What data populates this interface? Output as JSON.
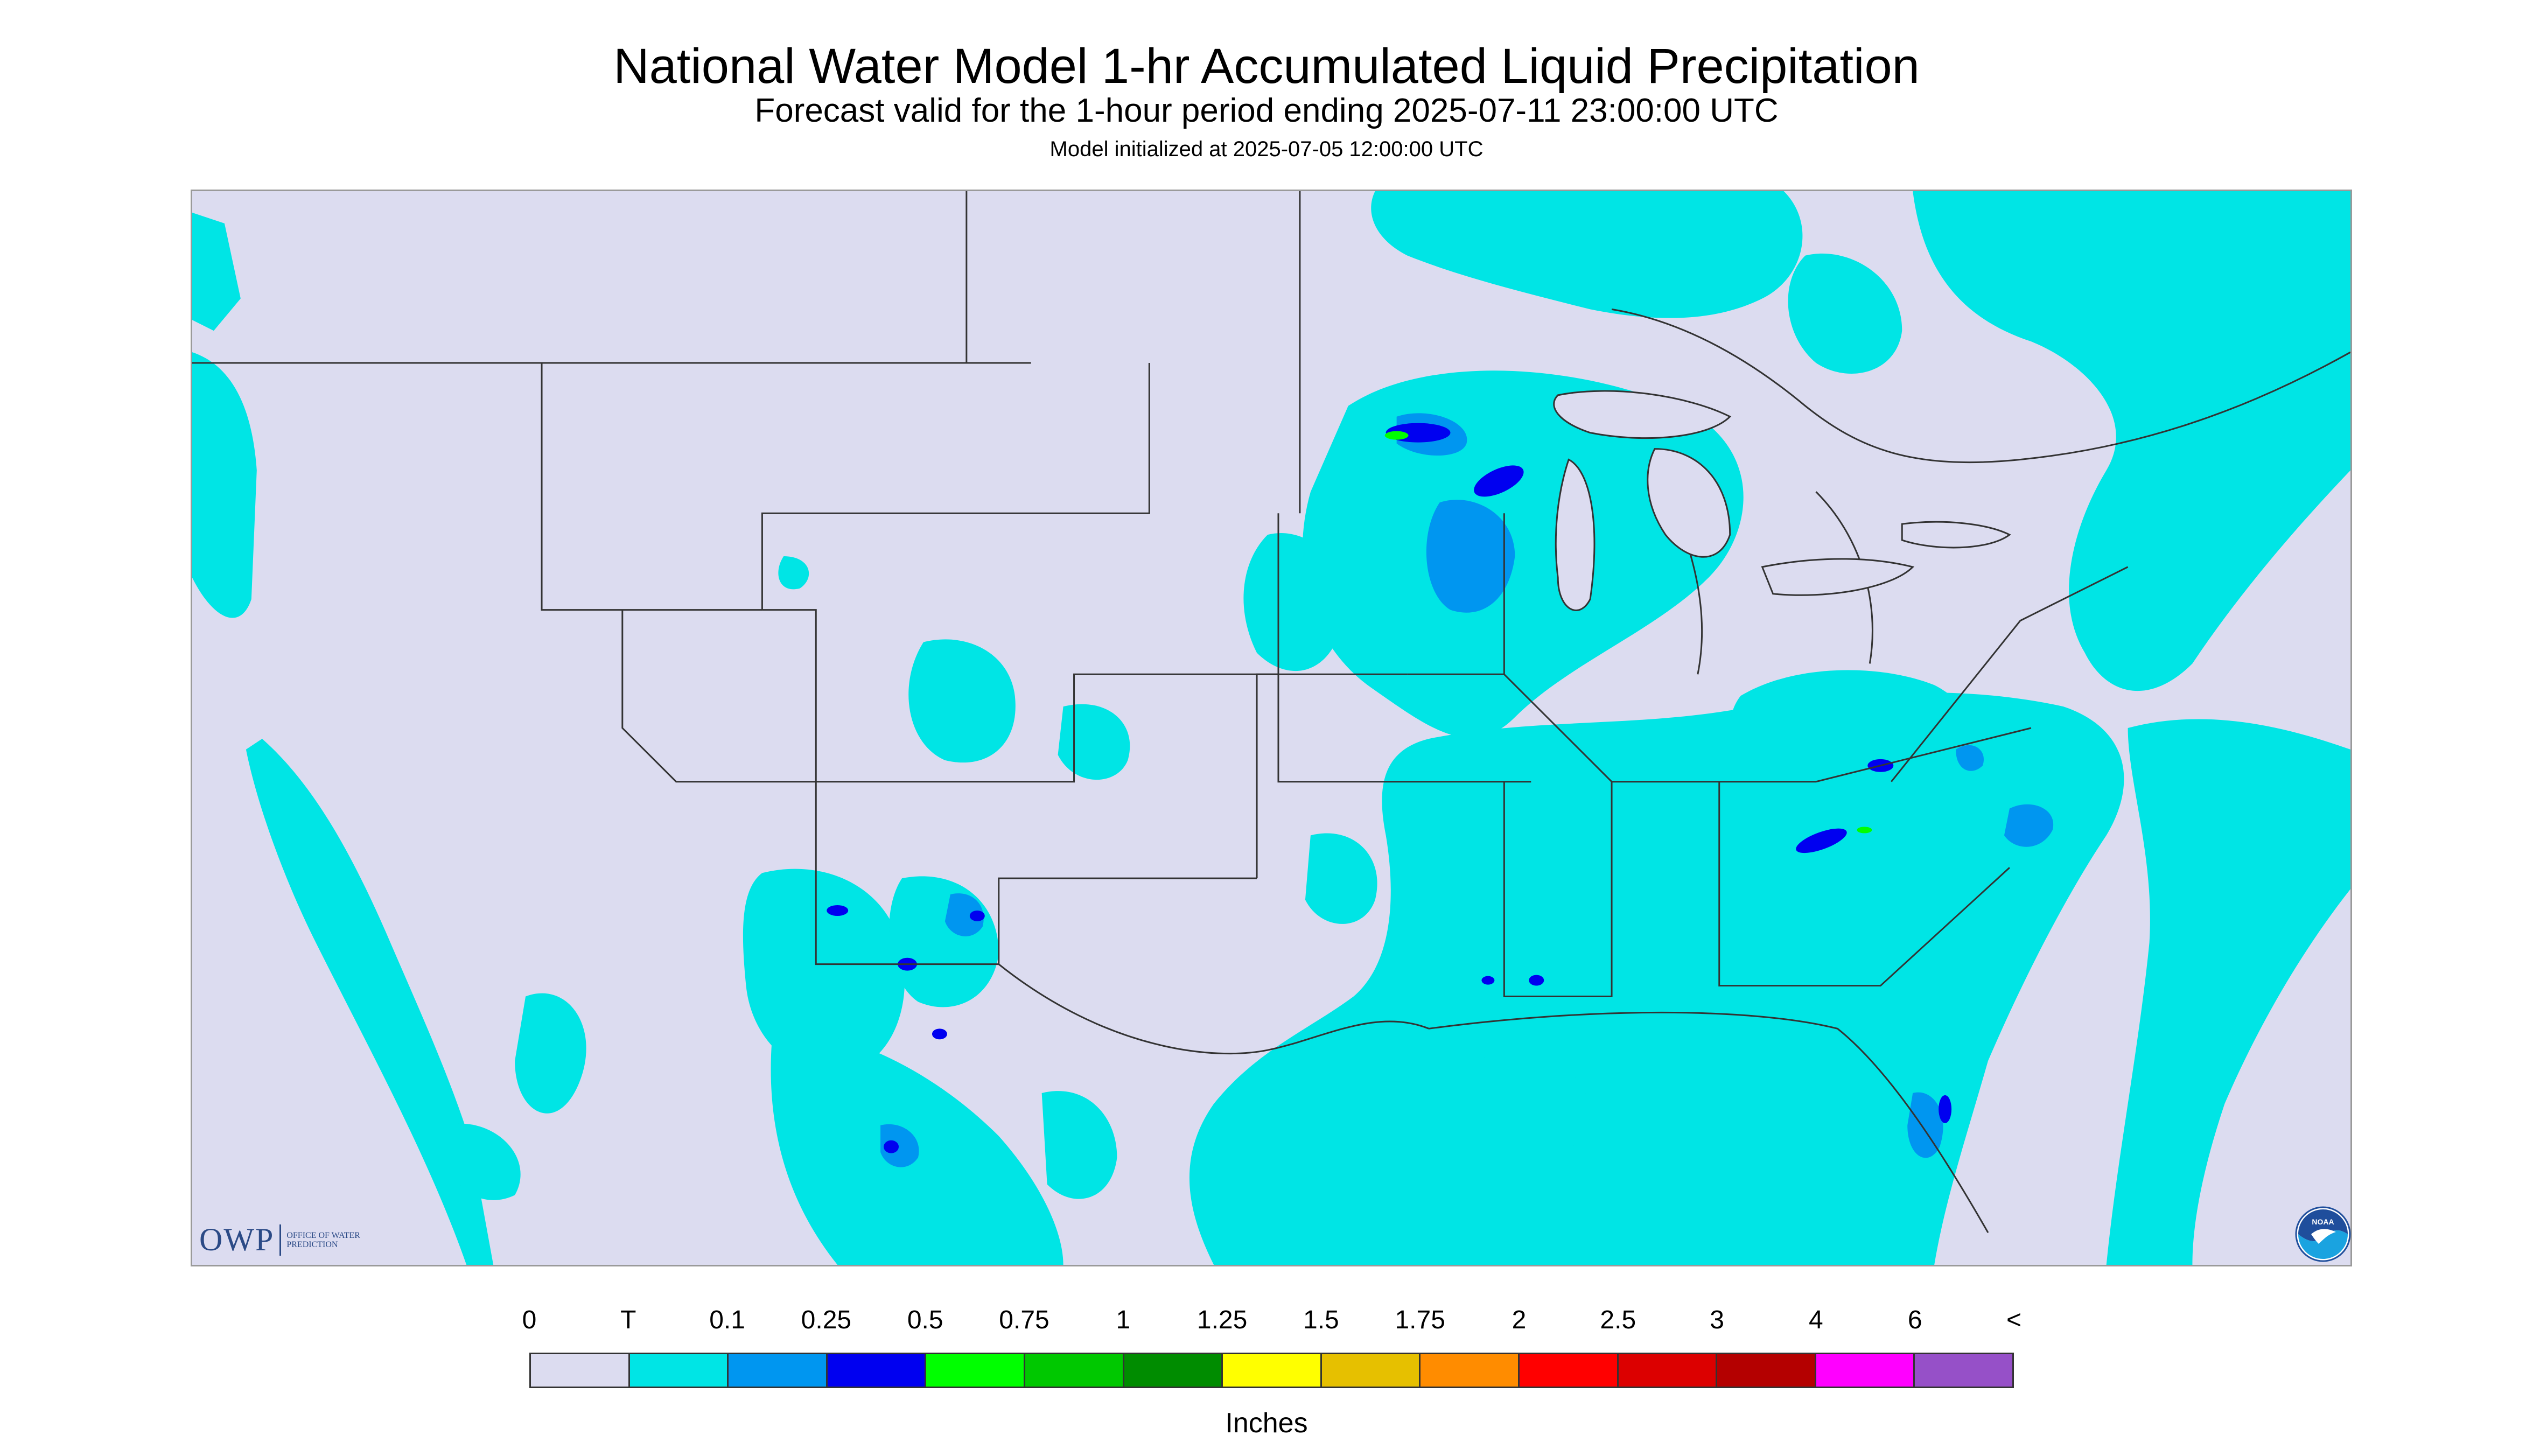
{
  "title": "National Water Model 1-hr Accumulated Liquid Precipitation",
  "subtitle": "Forecast valid for the 1-hour period ending 2025-07-11 23:00:00 UTC",
  "init_line": "Model initialized at 2025-07-05 12:00:00 UTC",
  "owp_logo": {
    "mark": "OWP",
    "text": "OFFICE OF WATER PREDICTION"
  },
  "noaa_logo": {
    "text": "NOAA"
  },
  "legend": {
    "labels": [
      "0",
      "T",
      "0.1",
      "0.25",
      "0.5",
      "0.75",
      "1",
      "1.25",
      "1.5",
      "1.75",
      "2",
      "2.5",
      "3",
      "4",
      "6",
      "<"
    ],
    "colors": [
      "#dcdcf0",
      "#00e5e5",
      "#0096f0",
      "#0000f0",
      "#00ff00",
      "#00c800",
      "#008c00",
      "#ffff00",
      "#e6c000",
      "#ff8c00",
      "#ff0000",
      "#dc0000",
      "#b40000",
      "#ff00ff",
      "#9650c8"
    ],
    "units": "Inches"
  },
  "map_colors": {
    "no_data": "#dcdcf0",
    "background": "#dcdcf0",
    "trace": "#00e5e5",
    "light": "#0096f0",
    "moderate": "#0000f0",
    "heavy": "#00ff00",
    "borders": "#333333"
  }
}
